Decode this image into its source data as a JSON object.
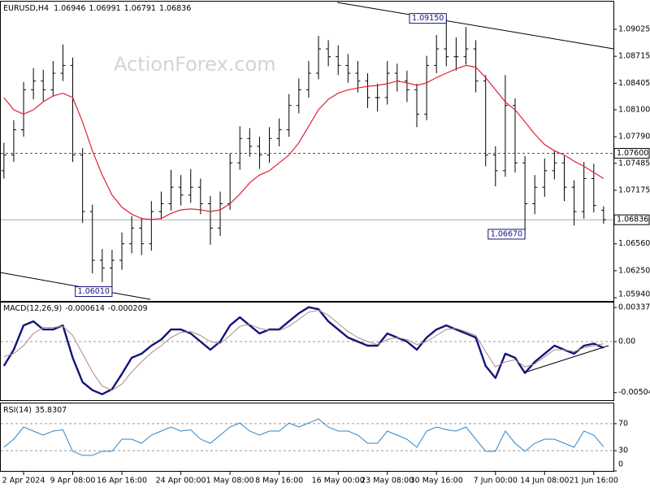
{
  "chart_data": [
    {
      "type": "ohlc",
      "title": "EURUSD,H4",
      "watermark": "ActionForex.com",
      "color": "#000000",
      "xlim": [
        -2.4,
        60
      ],
      "ylim": [
        1.05903,
        1.09343
      ],
      "xticks": [
        {
          "value": 0,
          "label": "2 Apr 2024"
        },
        {
          "value": 5,
          "label": "9 Apr 08:00"
        },
        {
          "value": 10,
          "label": "16 Apr 16:00"
        },
        {
          "value": 16,
          "label": "24 Apr 00:00"
        },
        {
          "value": 21,
          "label": "1 May 08:00"
        },
        {
          "value": 26,
          "label": "8 May 16:00"
        },
        {
          "value": 32,
          "label": "16 May 00:00"
        },
        {
          "value": 37,
          "label": "23 May 08:00"
        },
        {
          "value": 42,
          "label": "30 May 16:00"
        },
        {
          "value": 48,
          "label": "7 Jun 00:00"
        },
        {
          "value": 53,
          "label": "14 Jun 08:00"
        },
        {
          "value": 58,
          "label": "21 Jun 16:00"
        }
      ],
      "yticks": [
        1.09025,
        1.08715,
        1.08405,
        {
          "value": 1.081,
          "label": "1.08100"
        },
        {
          "value": 1.0779,
          "label": "1.07790"
        },
        1.07485,
        1.07175,
        {
          "value": 1.0656,
          "label": "1.06560"
        },
        {
          "value": 1.0625,
          "label": "1.06250"
        },
        {
          "value": 1.0594,
          "label": "1.05940"
        }
      ],
      "x": [
        -2,
        -1,
        0,
        1,
        2,
        3,
        4,
        5,
        6,
        7,
        8,
        9,
        10,
        11,
        12,
        13,
        14,
        15,
        16,
        17,
        18,
        19,
        20,
        21,
        22,
        23,
        24,
        25,
        26,
        27,
        28,
        29,
        30,
        31,
        32,
        33,
        34,
        35,
        36,
        37,
        38,
        39,
        40,
        41,
        42,
        43,
        44,
        45,
        46,
        47,
        48,
        49,
        50,
        51,
        52,
        53,
        54,
        55,
        56,
        57,
        58,
        59
      ],
      "ohlc": {
        "open": [
          1.074,
          1.0758,
          1.0787,
          1.0833,
          1.0843,
          1.0833,
          1.0852,
          1.0861,
          1.0758,
          1.0693,
          1.0637,
          1.0628,
          1.0637,
          1.0656,
          1.0674,
          1.0656,
          1.0693,
          1.0702,
          1.0721,
          1.0712,
          1.0721,
          1.0702,
          1.0674,
          1.0702,
          1.0749,
          1.0777,
          1.0768,
          1.0758,
          1.0777,
          1.0787,
          1.0815,
          1.0833,
          1.0852,
          1.088,
          1.0871,
          1.0861,
          1.0852,
          1.0843,
          1.0824,
          1.0824,
          1.0852,
          1.0843,
          1.0833,
          1.0805,
          1.0861,
          1.088,
          1.0871,
          1.0871,
          1.088,
          1.0843,
          1.0758,
          1.074,
          1.0815,
          1.0749,
          1.0702,
          1.0721,
          1.074,
          1.0749,
          1.0721,
          1.0693,
          1.0731,
          1.06946
        ],
        "high": [
          1.0772,
          1.0798,
          1.0842,
          1.0858,
          1.0856,
          1.0866,
          1.0885,
          1.087,
          1.0766,
          1.0701,
          1.065,
          1.0649,
          1.0669,
          1.0688,
          1.0686,
          1.0705,
          1.0716,
          1.0741,
          1.0735,
          1.0742,
          1.0731,
          1.0711,
          1.0716,
          1.076,
          1.0791,
          1.0789,
          1.0779,
          1.079,
          1.08,
          1.0828,
          1.0846,
          1.0866,
          1.0895,
          1.089,
          1.0884,
          1.0874,
          1.0866,
          1.0852,
          1.084,
          1.0866,
          1.0863,
          1.0855,
          1.084,
          1.0872,
          1.0896,
          1.0915,
          1.0893,
          1.0905,
          1.089,
          1.085,
          1.0768,
          1.085,
          1.0823,
          1.0757,
          1.0735,
          1.0754,
          1.0763,
          1.0757,
          1.0729,
          1.075,
          1.0748,
          1.06991
        ],
        "low": [
          1.0731,
          1.075,
          1.0779,
          1.0822,
          1.082,
          1.0825,
          1.0843,
          1.075,
          1.068,
          1.0622,
          1.0612,
          1.0601,
          1.0626,
          1.0645,
          1.0643,
          1.0648,
          1.0684,
          1.0694,
          1.07,
          1.0703,
          1.069,
          1.0655,
          1.0665,
          1.0695,
          1.0741,
          1.0756,
          1.0742,
          1.0749,
          1.0768,
          1.0779,
          1.0806,
          1.0824,
          1.0845,
          1.086,
          1.085,
          1.0841,
          1.083,
          1.0812,
          1.0808,
          1.0816,
          1.0831,
          1.0819,
          1.079,
          1.0798,
          1.0852,
          1.086,
          1.0855,
          1.0862,
          1.083,
          1.0745,
          1.0722,
          1.0733,
          1.0738,
          1.0667,
          1.069,
          1.071,
          1.073,
          1.0705,
          1.0677,
          1.0685,
          1.0692,
          1.06791
        ],
        "close": [
          1.0758,
          1.0787,
          1.0833,
          1.0843,
          1.0833,
          1.0852,
          1.0861,
          1.0758,
          1.0693,
          1.0637,
          1.0628,
          1.0637,
          1.0656,
          1.0674,
          1.0656,
          1.0693,
          1.0702,
          1.0721,
          1.0712,
          1.0721,
          1.0702,
          1.0674,
          1.0702,
          1.0749,
          1.0777,
          1.0768,
          1.0758,
          1.0777,
          1.0787,
          1.0815,
          1.0833,
          1.0852,
          1.088,
          1.0871,
          1.0861,
          1.0852,
          1.0843,
          1.0824,
          1.0824,
          1.0852,
          1.0843,
          1.0833,
          1.0805,
          1.0861,
          1.088,
          1.0871,
          1.0871,
          1.088,
          1.0843,
          1.0758,
          1.074,
          1.0815,
          1.0749,
          1.0702,
          1.0721,
          1.074,
          1.0749,
          1.0721,
          1.0693,
          1.0731,
          1.07,
          1.06836
        ]
      },
      "ma": {
        "color": "#e0203a",
        "values": [
          1.0824,
          1.081,
          1.0805,
          1.081,
          1.0819,
          1.0826,
          1.0829,
          1.0824,
          1.0796,
          1.0763,
          1.0735,
          1.0712,
          1.0698,
          1.069,
          1.0685,
          1.0684,
          1.0685,
          1.0691,
          1.0695,
          1.0696,
          1.0695,
          1.0693,
          1.0695,
          1.0702,
          1.0713,
          1.0726,
          1.0735,
          1.074,
          1.0749,
          1.0758,
          1.0772,
          1.0791,
          1.081,
          1.0822,
          1.0829,
          1.0833,
          1.0835,
          1.0837,
          1.0838,
          1.084,
          1.0843,
          1.0841,
          1.0838,
          1.0841,
          1.0847,
          1.0852,
          1.0857,
          1.0861,
          1.0859,
          1.0847,
          1.0833,
          1.0819,
          1.081,
          1.0796,
          1.0782,
          1.077,
          1.0763,
          1.0758,
          1.0751,
          1.0745,
          1.0738,
          1.0731
        ]
      },
      "levels": [
        {
          "value": 1.076,
          "label": "1.07600"
        }
      ],
      "last_price": 1.06836,
      "annotations": [
        {
          "x": 43,
          "value": 1.0915,
          "label": "1.09150"
        },
        {
          "x": 51,
          "value": 1.0667,
          "label": "1.06670"
        },
        {
          "x": 9,
          "value": 1.0601,
          "label": "1.06010"
        }
      ],
      "trendlines": [
        {
          "x": [
            31.9,
            60
          ],
          "y": [
            1.09334,
            1.08801
          ]
        },
        {
          "x": [
            -2.4,
            12.9
          ],
          "y": [
            1.0623,
            1.05921
          ]
        }
      ]
    },
    {
      "type": "macd",
      "title": "MACD(12,26,9)",
      "ylim": [
        -0.005786,
        0.003857
      ],
      "yticks": [
        0.003375,
        {
          "value": 0,
          "label": "0.00"
        },
        -0.00504
      ],
      "zero_line": true,
      "series": [
        {
          "color": "#14147a",
          "values": [
            -0.0024,
            -0.0008,
            0.0016,
            0.002,
            0.0012,
            0.0012,
            0.0016,
            -0.0016,
            -0.004,
            -0.0048,
            -0.0052,
            -0.0047,
            -0.0032,
            -0.0016,
            -0.0012,
            -0.0004,
            0.0002,
            0.0012,
            0.0012,
            0.0008,
            0.0,
            -0.0008,
            0.0,
            0.0016,
            0.0024,
            0.0016,
            0.0008,
            0.0012,
            0.0012,
            0.002,
            0.0028,
            0.0034,
            0.0032,
            0.002,
            0.0012,
            0.0004,
            0.0,
            -0.0004,
            -0.0004,
            0.0008,
            0.0004,
            0.0,
            -0.0008,
            0.0004,
            0.0012,
            0.0016,
            0.0012,
            0.0008,
            0.0004,
            -0.0024,
            -0.0036,
            -0.0012,
            -0.0016,
            -0.0031,
            -0.002,
            -0.0012,
            -0.0004,
            -0.0008,
            -0.0012,
            -0.0004,
            -0.0002,
            -0.000614
          ]
        },
        {
          "color": "#b08888",
          "values": [
            -0.0015,
            -0.0012,
            -0.0004,
            0.0008,
            0.0014,
            0.0014,
            0.0015,
            0.0006,
            -0.0012,
            -0.003,
            -0.0044,
            -0.0048,
            -0.0042,
            -0.003,
            -0.002,
            -0.0011,
            -0.0004,
            0.0004,
            0.0009,
            0.001,
            0.0006,
            0.0,
            -0.0002,
            0.0006,
            0.0015,
            0.0017,
            0.0013,
            0.0011,
            0.0011,
            0.0015,
            0.0022,
            0.0029,
            0.0031,
            0.0026,
            0.0018,
            0.001,
            0.0004,
            0.0,
            -0.0003,
            0.0002,
            0.0004,
            0.0002,
            -0.0003,
            0.0,
            0.0006,
            0.0012,
            0.0013,
            0.001,
            0.0006,
            -0.001,
            -0.0025,
            -0.002,
            -0.0018,
            -0.0025,
            -0.0022,
            -0.0015,
            -0.0008,
            -0.0008,
            -0.001,
            -0.0006,
            -0.0004,
            -0.000209
          ]
        }
      ],
      "trendlines": [
        {
          "x": [
            50.95,
            59.5
          ],
          "y": [
            -0.00305,
            -0.0004
          ]
        }
      ]
    },
    {
      "type": "rsi",
      "title": "RSI(14)",
      "ylim": [
        0,
        100
      ],
      "yticks": [
        70,
        30,
        0
      ],
      "grid": true,
      "series": [
        {
          "color": "#2f86c8",
          "values": [
            35,
            47,
            65,
            59,
            53,
            59,
            61,
            29,
            23,
            23,
            29,
            29,
            47,
            47,
            41,
            53,
            59,
            65,
            59,
            61,
            47,
            41,
            53,
            65,
            71,
            59,
            53,
            59,
            59,
            71,
            65,
            71,
            77,
            65,
            59,
            59,
            53,
            41,
            41,
            59,
            53,
            47,
            35,
            59,
            65,
            61,
            59,
            65,
            47,
            29,
            29,
            59,
            41,
            29,
            41,
            47,
            47,
            41,
            35,
            59,
            53,
            35.8307
          ]
        }
      ]
    }
  ]
}
